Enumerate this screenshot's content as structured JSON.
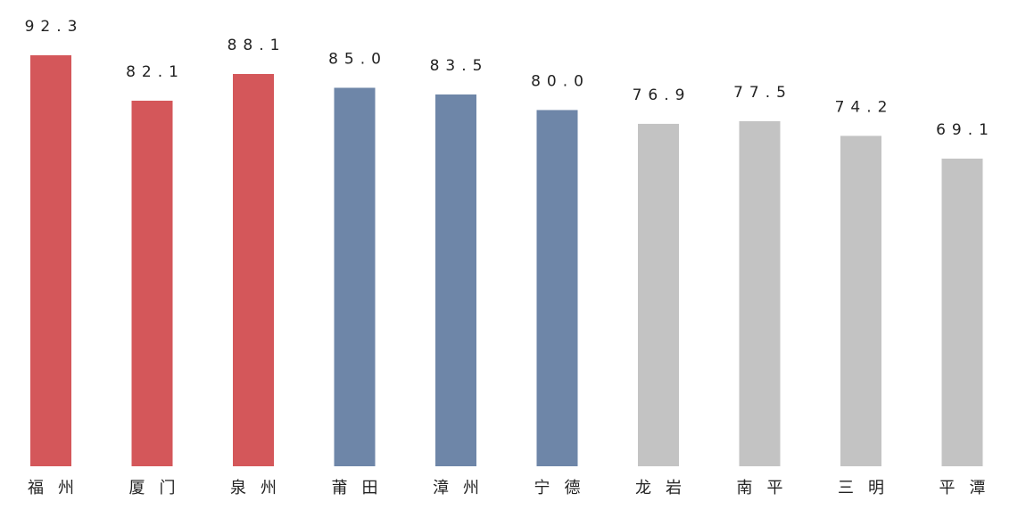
{
  "chart_data": {
    "type": "bar",
    "categories": [
      "福州",
      "厦门",
      "泉州",
      "莆田",
      "漳州",
      "宁德",
      "龙岩",
      "南平",
      "三明",
      "平潭"
    ],
    "values": [
      92.3,
      82.1,
      88.1,
      85.0,
      83.5,
      80.0,
      76.9,
      77.5,
      74.2,
      69.1
    ],
    "value_labels": [
      "92.3",
      "82.1",
      "88.1",
      "85.0",
      "83.5",
      "80.0",
      "76.9",
      "77.5",
      "74.2",
      "69.1"
    ],
    "colors": [
      "#d4575a",
      "#d4575a",
      "#d4575a",
      "#6e86a8",
      "#6e86a8",
      "#6e86a8",
      "#c3c3c3",
      "#c3c3c3",
      "#c3c3c3",
      "#c3c3c3"
    ]
  }
}
